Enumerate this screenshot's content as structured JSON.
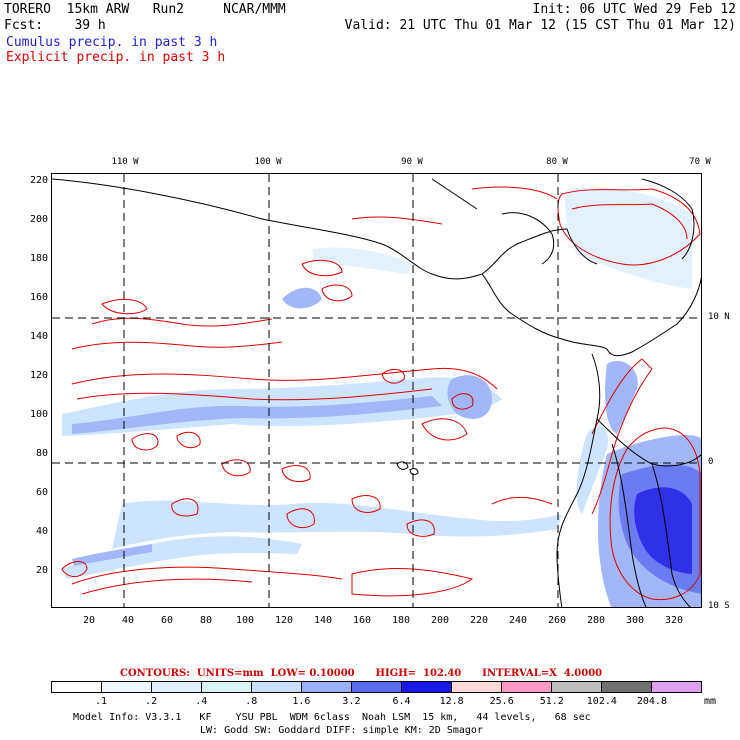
{
  "header": {
    "line1_left": "TORERO  15km ARW   Run2     NCAR/MMM",
    "line1_right": "Init: 06 UTC Wed 29 Feb 12",
    "line2_left": "Fcst:    39 h",
    "line2_right": "Valid: 21 UTC Thu 01 Mar 12 (15 CST Thu 01 Mar 12)",
    "cumulus_label": "Cumulus precip. in past 3 h",
    "explicit_label": "Explicit precip. in past 3 h"
  },
  "map": {
    "y_ticks": [
      "220",
      "200",
      "180",
      "160",
      "140",
      "120",
      "100",
      "80",
      "60",
      "40",
      "20"
    ],
    "x_ticks": [
      "20",
      "40",
      "60",
      "80",
      "100",
      "120",
      "140",
      "160",
      "180",
      "200",
      "220",
      "240",
      "260",
      "280",
      "300",
      "320"
    ],
    "lon_labels": [
      "110 W",
      "100 W",
      "90 W",
      "80 W",
      "70 W"
    ],
    "lat_labels": [
      "10 N",
      "0",
      "10 S"
    ]
  },
  "contours": {
    "text": "CONTOURS:  UNITS=mm  LOW= 0.10000      HIGH=  102.40      INTERVAL=X  4.0000"
  },
  "legend": {
    "values": [
      ".1",
      ".2",
      ".4",
      ".8",
      "1.6",
      "3.2",
      "6.4",
      "12.8",
      "25.6",
      "51.2",
      "102.4",
      "204.8"
    ],
    "units": "mm",
    "colors": [
      "#ffffff",
      "#f0f8ff",
      "#e0f0ff",
      "#d8f4f4",
      "#c8e0ff",
      "#9ab0f8",
      "#5a6ef0",
      "#1a1ae6",
      "#ffd8d8",
      "#ff9ac8",
      "#bcbcbc",
      "#707070",
      "#e0a0f0"
    ]
  },
  "footer": {
    "line1": "Model Info: V3.3.1   KF    YSU PBL  WDM 6class  Noah LSM  15 km,   44 levels,   68 sec",
    "line2": "LW: Godd SW: Goddard DIFF: simple KM: 2D Smagor"
  }
}
